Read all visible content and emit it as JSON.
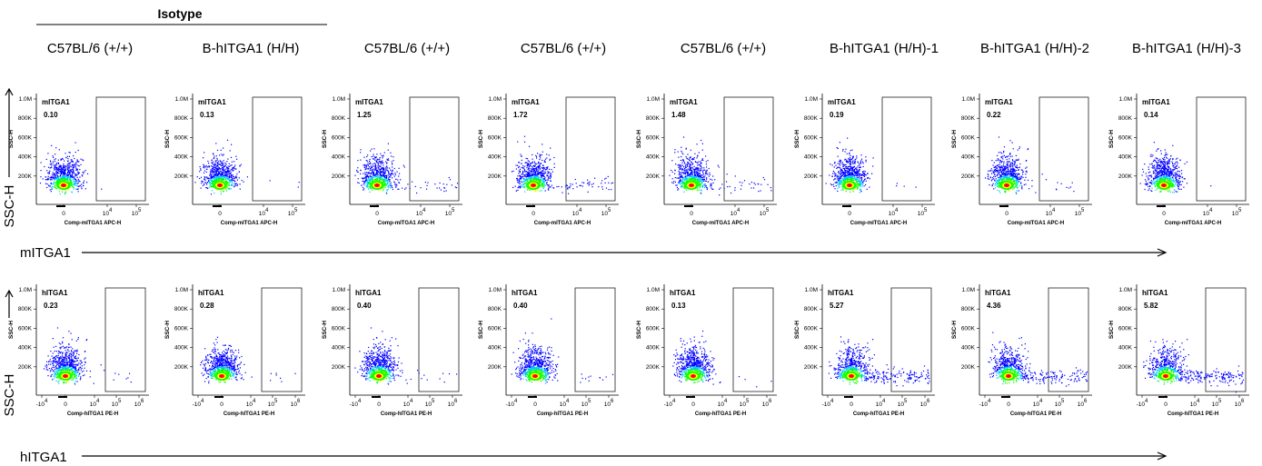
{
  "chart_data": {
    "type": "scatter",
    "plot_style": "flow-cytometry pseudocolor density dot plots with rectangular gates",
    "group_label": "Isotype",
    "columns": [
      "C57BL/6 (+/+)",
      "B-hITGA1 (H/H)",
      "C57BL/6 (+/+)",
      "C57BL/6 (+/+)",
      "C57BL/6 (+/+)",
      "B-hITGA1 (H/H)-1",
      "B-hITGA1 (H/H)-2",
      "B-hITGA1 (H/H)-3"
    ],
    "y_axis_label": "SSC-H",
    "y_ticks": [
      "200K",
      "400K",
      "600K",
      "800K",
      "1.0M"
    ],
    "colors": [
      "#0000ff",
      "#00c8ff",
      "#00ff00",
      "#ffff00",
      "#ff8000",
      "#ff0000"
    ],
    "rows": [
      {
        "row_axis_label": "mITGA1",
        "x_axis_label": "Comp-mITGA1 APC-H",
        "gate_label": "mITGA1",
        "y_label": "SSC-H",
        "x_ticks": [
          "0",
          "10^4",
          "10^5"
        ],
        "gate_percentages": [
          "0.10",
          "0.13",
          "1.25",
          "1.72",
          "1.48",
          "0.19",
          "0.22",
          "0.14"
        ]
      },
      {
        "row_axis_label": "hITGA1",
        "x_axis_label": "Comp-hITGA1 PE-H",
        "gate_label": "hITGA1",
        "y_label": "SSC-H",
        "x_ticks": [
          "-10^4",
          "0",
          "10^4",
          "10^5",
          "10^6"
        ],
        "gate_percentages": [
          "0.23",
          "0.28",
          "0.40",
          "0.40",
          "0.13",
          "5.27",
          "4.36",
          "5.82"
        ]
      }
    ]
  }
}
